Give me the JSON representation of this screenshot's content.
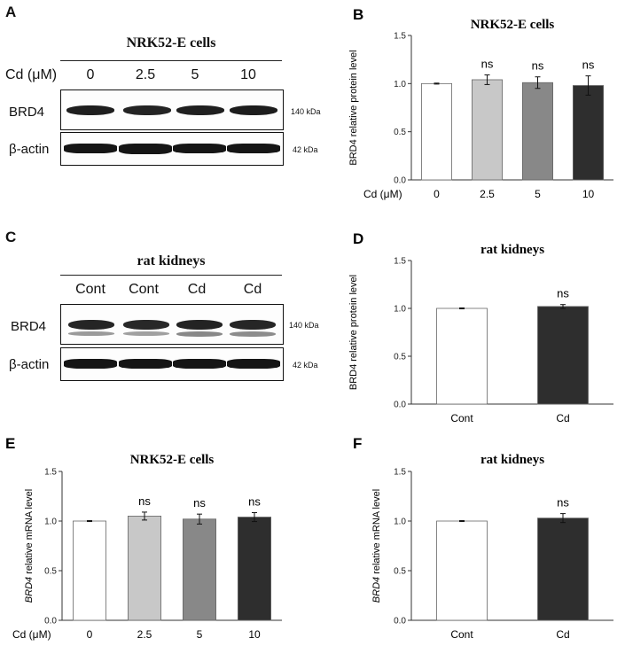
{
  "panels": {
    "A": {
      "letter": "A",
      "title": "NRK52-E cells",
      "condition_label": "Cd (μM)",
      "lanes": [
        "0",
        "2.5",
        "5",
        "10"
      ],
      "rows": [
        {
          "label": "BRD4",
          "kda": "140 kDa"
        },
        {
          "label": "β-actin",
          "kda": "42 kDa"
        }
      ]
    },
    "C": {
      "letter": "C",
      "title": "rat kidneys",
      "lanes": [
        "Cont",
        "Cont",
        "Cd",
        "Cd"
      ],
      "rows": [
        {
          "label": "BRD4",
          "kda": "140 kDa"
        },
        {
          "label": "β-actin",
          "kda": "42 kDa"
        }
      ]
    }
  },
  "chart_data": [
    {
      "id": "B",
      "letter": "B",
      "type": "bar",
      "title": "NRK52-E cells",
      "ylabel": "BRD4 relative protein level",
      "ylabel_italic_prefix": "",
      "xlabel_prefix": "Cd (μM)",
      "categories": [
        "0",
        "2.5",
        "5",
        "10"
      ],
      "values": [
        1.0,
        1.04,
        1.01,
        0.98
      ],
      "errors": [
        0.005,
        0.05,
        0.06,
        0.1
      ],
      "annotations": [
        "",
        "ns",
        "ns",
        "ns"
      ],
      "colors": [
        "#ffffff",
        "#c8c8c8",
        "#888888",
        "#2e2e2e"
      ],
      "ylim": [
        0,
        1.5
      ],
      "yticks": [
        "0.0",
        "0.5",
        "1.0",
        "1.5"
      ]
    },
    {
      "id": "D",
      "letter": "D",
      "type": "bar",
      "title": "rat kidneys",
      "ylabel": "BRD4 relative protein level",
      "ylabel_italic_prefix": "",
      "xlabel_prefix": "",
      "categories": [
        "Cont",
        "Cd"
      ],
      "values": [
        1.0,
        1.02
      ],
      "errors": [
        0.005,
        0.02
      ],
      "annotations": [
        "",
        "ns"
      ],
      "colors": [
        "#ffffff",
        "#2e2e2e"
      ],
      "ylim": [
        0,
        1.5
      ],
      "yticks": [
        "0.0",
        "0.5",
        "1.0",
        "1.5"
      ]
    },
    {
      "id": "E",
      "letter": "E",
      "type": "bar",
      "title": "NRK52-E cells",
      "ylabel": " relative mRNA level",
      "ylabel_italic_prefix": "BRD4",
      "xlabel_prefix": "Cd (μM)",
      "categories": [
        "0",
        "2.5",
        "5",
        "10"
      ],
      "values": [
        1.0,
        1.05,
        1.02,
        1.04
      ],
      "errors": [
        0.005,
        0.04,
        0.05,
        0.045
      ],
      "annotations": [
        "",
        "ns",
        "ns",
        "ns"
      ],
      "colors": [
        "#ffffff",
        "#c8c8c8",
        "#888888",
        "#2e2e2e"
      ],
      "ylim": [
        0,
        1.5
      ],
      "yticks": [
        "0.0",
        "0.5",
        "1.0",
        "1.5"
      ]
    },
    {
      "id": "F",
      "letter": "F",
      "type": "bar",
      "title": "rat kidneys",
      "ylabel": " relative mRNA level",
      "ylabel_italic_prefix": "BRD4",
      "xlabel_prefix": "",
      "categories": [
        "Cont",
        "Cd"
      ],
      "values": [
        1.0,
        1.03
      ],
      "errors": [
        0.005,
        0.045
      ],
      "annotations": [
        "",
        "ns"
      ],
      "colors": [
        "#ffffff",
        "#2e2e2e"
      ],
      "ylim": [
        0,
        1.5
      ],
      "yticks": [
        "0.0",
        "0.5",
        "1.0",
        "1.5"
      ]
    }
  ]
}
